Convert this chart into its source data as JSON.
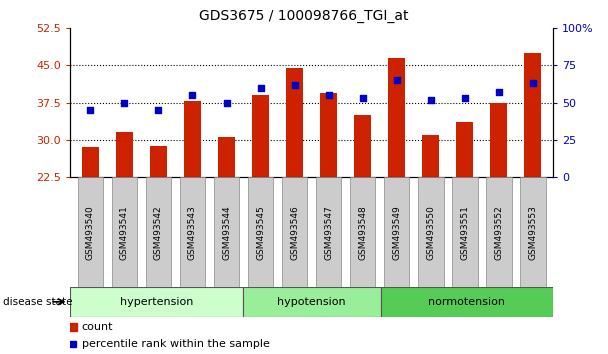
{
  "title": "GDS3675 / 100098766_TGI_at",
  "samples": [
    "GSM493540",
    "GSM493541",
    "GSM493542",
    "GSM493543",
    "GSM493544",
    "GSM493545",
    "GSM493546",
    "GSM493547",
    "GSM493548",
    "GSM493549",
    "GSM493550",
    "GSM493551",
    "GSM493552",
    "GSM493553"
  ],
  "counts": [
    28.5,
    31.5,
    28.8,
    37.8,
    30.5,
    39.0,
    44.5,
    39.5,
    35.0,
    46.5,
    31.0,
    33.5,
    37.5,
    47.5
  ],
  "percentiles": [
    45,
    50,
    45,
    55,
    50,
    60,
    62,
    55,
    53,
    65,
    52,
    53,
    57,
    63
  ],
  "ylim_left": [
    22.5,
    52.5
  ],
  "ylim_right": [
    0,
    100
  ],
  "yticks_left": [
    22.5,
    30,
    37.5,
    45,
    52.5
  ],
  "yticks_right": [
    0,
    25,
    50,
    75,
    100
  ],
  "bar_color": "#cc2200",
  "dot_color": "#0000cc",
  "groups": [
    {
      "label": "hypertension",
      "start": 0,
      "end": 5,
      "color": "#ccffcc"
    },
    {
      "label": "hypotension",
      "start": 5,
      "end": 9,
      "color": "#99ee99"
    },
    {
      "label": "normotension",
      "start": 9,
      "end": 14,
      "color": "#55cc55"
    }
  ],
  "disease_state_label": "disease state",
  "legend_count": "count",
  "legend_percentile": "percentile rank within the sample",
  "grid_yticks": [
    30,
    37.5,
    45
  ],
  "tick_label_color_left": "#cc2200",
  "tick_label_color_right": "#0000cc",
  "bar_width": 0.5,
  "dot_size": 20,
  "tick_fontsize": 7.5,
  "title_fontsize": 10
}
